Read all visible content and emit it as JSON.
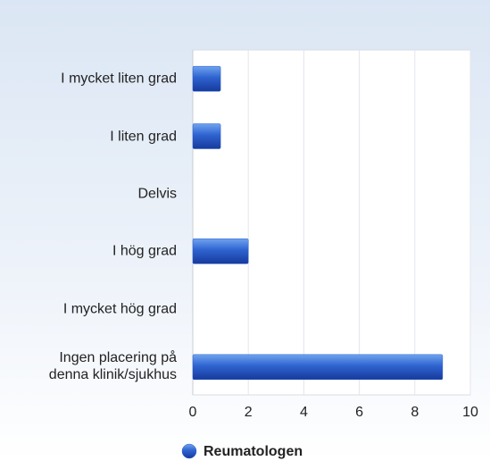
{
  "chart_data": {
    "type": "barh",
    "categories": [
      "I mycket liten grad",
      "I liten grad",
      "Delvis",
      "I hög grad",
      "I mycket hög grad",
      "Ingen placering på denna klinik/sjukhus"
    ],
    "series": [
      {
        "name": "Reumatologen",
        "color": "#2a5bc8",
        "values": [
          1,
          1,
          0,
          2,
          0,
          9
        ]
      }
    ],
    "xlim": [
      0,
      10
    ],
    "xticks": [
      0,
      2,
      4,
      6,
      8,
      10
    ],
    "grid": true,
    "legend": "bottom"
  }
}
